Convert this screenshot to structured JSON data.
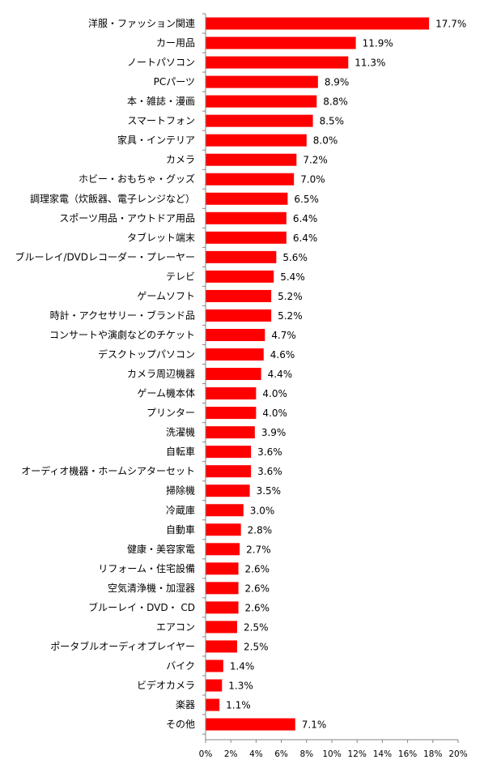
{
  "chart_data": {
    "type": "bar",
    "orientation": "horizontal",
    "categories": [
      "洋服・ファッション関連",
      "カー用品",
      "ノートパソコン",
      "PCパーツ",
      "本・雑誌・漫画",
      "スマートフォン",
      "家具・インテリア",
      "カメラ",
      "ホビー・おもちゃ・グッズ",
      "調理家電（炊飯器、電子レンジなど）",
      "スポーツ用品・アウトドア用品",
      "タブレット端末",
      "ブルーレイ/DVDレコーダー・プレーヤー",
      "テレビ",
      "ゲームソフト",
      "時計・アクセサリー・ブランド品",
      "コンサートや演劇などのチケット",
      "デスクトップパソコン",
      "カメラ周辺機器",
      "ゲーム機本体",
      "プリンター",
      "洗濯機",
      "自転車",
      "オーディオ機器・ホームシアターセット",
      "掃除機",
      "冷蔵庫",
      "自動車",
      "健康・美容家電",
      "リフォーム・住宅設備",
      "空気清浄機・加湿器",
      "ブルーレイ・DVD・ CD",
      "エアコン",
      "ポータブルオーディオプレイヤー",
      "バイク",
      "ビデオカメラ",
      "楽器",
      "その他"
    ],
    "values": [
      17.7,
      11.9,
      11.3,
      8.9,
      8.8,
      8.5,
      8.0,
      7.2,
      7.0,
      6.5,
      6.4,
      6.4,
      5.6,
      5.4,
      5.2,
      5.2,
      4.7,
      4.6,
      4.4,
      4.0,
      4.0,
      3.9,
      3.6,
      3.6,
      3.5,
      3.0,
      2.8,
      2.7,
      2.6,
      2.6,
      2.6,
      2.5,
      2.5,
      1.4,
      1.3,
      1.1,
      7.1
    ],
    "value_labels": [
      "17.7%",
      "11.9%",
      "11.3%",
      "8.9%",
      "8.8%",
      "8.5%",
      "8.0%",
      "7.2%",
      "7.0%",
      "6.5%",
      "6.4%",
      "6.4%",
      "5.6%",
      "5.4%",
      "5.2%",
      "5.2%",
      "4.7%",
      "4.6%",
      "4.4%",
      "4.0%",
      "4.0%",
      "3.9%",
      "3.6%",
      "3.6%",
      "3.5%",
      "3.0%",
      "2.8%",
      "2.7%",
      "2.6%",
      "2.6%",
      "2.6%",
      "2.5%",
      "2.5%",
      "1.4%",
      "1.3%",
      "1.1%",
      "7.1%"
    ],
    "x_ticks": [
      0,
      2,
      4,
      6,
      8,
      10,
      12,
      14,
      16,
      18,
      20
    ],
    "x_tick_labels": [
      "0%",
      "2%",
      "4%",
      "6%",
      "8%",
      "10%",
      "12%",
      "14%",
      "16%",
      "18%",
      "20%"
    ],
    "xlim": [
      0,
      20
    ],
    "title": "",
    "xlabel": "",
    "ylabel": "",
    "grid": false,
    "legend": "none",
    "colors": {
      "bar": "#ff0000",
      "axis": "#868686",
      "text": "#000000"
    }
  }
}
